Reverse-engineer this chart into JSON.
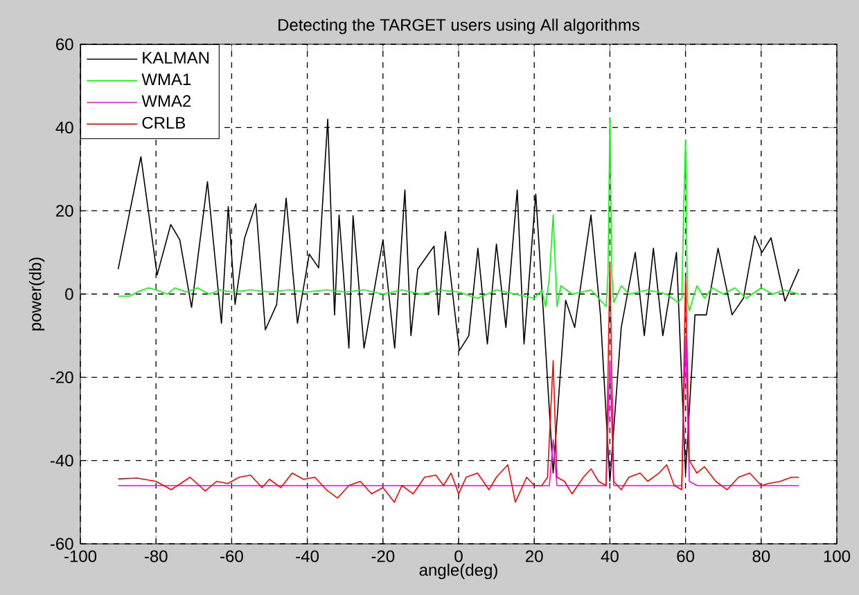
{
  "chart_data": {
    "type": "line",
    "title": "Detecting the TARGET users using All algorithms",
    "xlabel": "angle(deg)",
    "ylabel": "power(db)",
    "xlim": [
      -100,
      100
    ],
    "xticks": [
      -100,
      -80,
      -60,
      -40,
      -20,
      0,
      20,
      40,
      60,
      80,
      100
    ],
    "ylim": [
      -60,
      60
    ],
    "yticks": [
      -60,
      -40,
      -20,
      0,
      20,
      40,
      60
    ],
    "grid": true,
    "legend": "top left",
    "marker": "none",
    "line_style": "solid",
    "series": [
      {
        "name": "KALMAN",
        "color": "#000000",
        "x": [
          -90,
          -84,
          -79.7,
          -76.1,
          -73.7,
          -70.6,
          -66.4,
          -62.7,
          -60.9,
          -59.1,
          -56.6,
          -53.6,
          -51.1,
          -48.1,
          -45.6,
          -42.6,
          -39.5,
          -37,
          -34.6,
          -32.8,
          -31.6,
          -29,
          -27.9,
          -25,
          -20,
          -16.9,
          -14.2,
          -12.6,
          -10.8,
          -6.5,
          -5.3,
          -3.5,
          0.2,
          2.7,
          5.1,
          7.6,
          10,
          12.5,
          15.5,
          17.3,
          20.4,
          22.8,
          25,
          28.3,
          30.7,
          35,
          37.5,
          40,
          43,
          46.7,
          49.1,
          51.5,
          54,
          57.6,
          60,
          62.5,
          65.5,
          68.6,
          72.3,
          75.3,
          78.3,
          80.2,
          82.6,
          86.3,
          90
        ],
        "values": [
          6,
          33,
          4.6,
          16.7,
          13,
          -3.2,
          27,
          -7,
          21,
          -2.5,
          13.4,
          21.7,
          -8.6,
          -2.5,
          23,
          -7,
          9.6,
          6.3,
          42,
          -5,
          19,
          -13,
          18.8,
          -13,
          13,
          -13,
          25,
          -10,
          6,
          11.5,
          -5,
          15,
          -13.6,
          -10,
          11,
          -12,
          12,
          -8,
          25,
          -12,
          24,
          -10,
          -43,
          -1.5,
          -8,
          19,
          -5,
          -45,
          -8,
          10,
          -10,
          11,
          -10,
          10,
          -43,
          -5,
          -5,
          11,
          -5,
          -1,
          14,
          10,
          13.5,
          -1.7,
          6
        ]
      },
      {
        "name": "WMA1",
        "color": "#00ff00",
        "x": [
          -90,
          -87,
          -85,
          -82,
          -80,
          -77,
          -75,
          -72,
          -69,
          -66,
          -63,
          -60,
          -55,
          -50,
          -45,
          -40,
          -35,
          -30,
          -25,
          -20,
          -15,
          -10,
          -5,
          0,
          5,
          10,
          15,
          20,
          22,
          23,
          24,
          25,
          26,
          27,
          30,
          35,
          38,
          39,
          39.5,
          40,
          40.5,
          41,
          43,
          45,
          50,
          55,
          58,
          59,
          59.5,
          60,
          60.5,
          61,
          63,
          65,
          67,
          70,
          73,
          76,
          80,
          83,
          86,
          90
        ],
        "values": [
          -0.5,
          -0.5,
          0.5,
          1.5,
          1,
          0,
          1.5,
          0.5,
          1.5,
          0,
          1,
          0.5,
          1,
          0.5,
          1,
          0.5,
          1,
          0.5,
          1,
          0,
          1,
          0,
          1,
          0.5,
          -1,
          1,
          0,
          -1,
          1,
          -3,
          4,
          19,
          -3,
          2,
          0,
          1,
          -2,
          -3,
          5,
          42,
          5,
          -2,
          2,
          0,
          1,
          0,
          -2,
          -1,
          20,
          37,
          -2,
          -4,
          2,
          -1,
          1.5,
          0,
          1.5,
          -1,
          1.5,
          0,
          1,
          0
        ]
      },
      {
        "name": "WMA2",
        "color": "#ff00ff",
        "x": [
          -90,
          24,
          25,
          26,
          39,
          40,
          41,
          59,
          60,
          61,
          63,
          90
        ],
        "values": [
          -46,
          -46,
          -35,
          -46,
          -46,
          -16,
          -46,
          -46,
          -10,
          -45,
          -46,
          -46
        ]
      },
      {
        "name": "CRLB",
        "color": "#ff0000",
        "x": [
          -90,
          -85,
          -80,
          -76,
          -71,
          -67,
          -64,
          -61,
          -58,
          -55,
          -52,
          -50,
          -47,
          -44,
          -41,
          -38,
          -35,
          -32,
          -29,
          -26,
          -23,
          -20,
          -17,
          -15,
          -12,
          -9,
          -6,
          -4,
          -2,
          0,
          2,
          5,
          8,
          10,
          13,
          15,
          18,
          20,
          22,
          23.5,
          25,
          26,
          28,
          30,
          33,
          35,
          37,
          39,
          40,
          41,
          43,
          45,
          48,
          50,
          53,
          55,
          57,
          59,
          60,
          61,
          63,
          65,
          68,
          71,
          74,
          77,
          80,
          82,
          85,
          88,
          90
        ],
        "values": [
          -44.4,
          -44.2,
          -45,
          -47,
          -44,
          -47.3,
          -45,
          -45.5,
          -44,
          -43.5,
          -46.5,
          -44.5,
          -46.5,
          -43,
          -44.5,
          -44,
          -47,
          -49,
          -46,
          -45,
          -48,
          -46.5,
          -50,
          -46,
          -48,
          -44,
          -43.5,
          -46,
          -43,
          -48,
          -44,
          -43,
          -47,
          -44,
          -41,
          -50,
          -44,
          -46,
          -46,
          -44,
          -16,
          -44,
          -45,
          -48,
          -44,
          -42,
          -45,
          -46,
          7,
          -45,
          -47,
          -44,
          -43,
          -45,
          -43,
          -41,
          -46,
          -47,
          4,
          -40,
          -43,
          -41.5,
          -45,
          -47,
          -44,
          -43,
          -46,
          -45.5,
          -45,
          -44,
          -44
        ]
      }
    ]
  }
}
